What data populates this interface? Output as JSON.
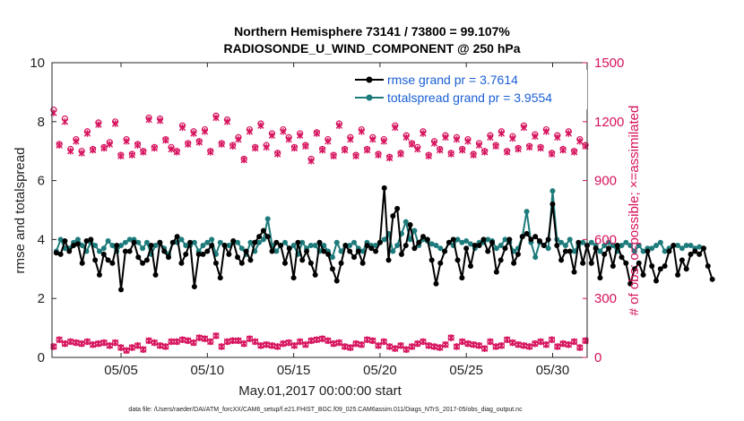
{
  "chart_data": {
    "type": "line",
    "title_line1": "Northern Hemisphere 73141 / 73800 = 99.107%",
    "title_line2": "RADIOSONDE_U_WIND_COMPONENT @ 250 hPa",
    "xlabel": "May.01,2017 00:00:00 start",
    "ylabel_left": "rmse and totalspread",
    "ylabel_right": "# of obs: o=possible; ×=assimilated",
    "footnote": "data file: /Users/raeder/DAI/ATM_forcXX/CAM6_setup/f.e21.FHIST_BGC.f09_025.CAM6assim.011/Diags_NTrS_2017-05/obs_diag_output.nc",
    "x_range": [
      1,
      32
    ],
    "ylim_left": [
      0,
      10
    ],
    "ylim_right": [
      0,
      1500
    ],
    "yticks_left": [
      "0",
      "2",
      "4",
      "6",
      "8",
      "10"
    ],
    "yticks_right": [
      "0",
      "300",
      "600",
      "900",
      "1200",
      "1500"
    ],
    "xticks": [
      {
        "label": "05/05",
        "day": 5
      },
      {
        "label": "05/10",
        "day": 10
      },
      {
        "label": "05/15",
        "day": 15
      },
      {
        "label": "05/20",
        "day": 20
      },
      {
        "label": "05/25",
        "day": 25
      },
      {
        "label": "05/30",
        "day": 30
      }
    ],
    "legend": [
      {
        "label": "rmse grand pr = 3.7614",
        "color": "#000000"
      },
      {
        "label": "totalspread grand pr = 3.9554",
        "color": "#1e7b7b"
      }
    ],
    "colors": {
      "rmse": "#000000",
      "spread": "#1e7b7b",
      "obs": "#d6125d"
    },
    "x_start": 1.25,
    "x_step": 0.25,
    "series": [
      {
        "name": "rmse",
        "values": [
          3.55,
          3.5,
          3.95,
          3.6,
          3.8,
          3.85,
          3.2,
          3.95,
          4.0,
          3.3,
          2.8,
          3.5,
          3.3,
          3.2,
          3.8,
          2.3,
          3.6,
          3.6,
          3.9,
          3.4,
          3.2,
          3.3,
          3.8,
          2.8,
          3.9,
          3.6,
          3.4,
          3.9,
          4.1,
          3.2,
          3.5,
          3.9,
          2.4,
          3.5,
          3.5,
          3.6,
          3.8,
          3.2,
          2.7,
          3.8,
          3.5,
          3.95,
          3.4,
          3.2,
          3.6,
          3.3,
          3.9,
          4.1,
          4.3,
          4.1,
          3.6,
          3.9,
          3.8,
          3.2,
          3.7,
          2.7,
          3.9,
          3.3,
          3.6,
          3.2,
          2.8,
          3.9,
          3.6,
          3.5,
          3.0,
          2.6,
          3.2,
          3.8,
          3.6,
          3.4,
          3.6,
          3.2,
          3.8,
          3.7,
          3.6,
          3.9,
          5.75,
          3.3,
          4.8,
          5.05,
          3.5,
          3.8,
          4.5,
          3.7,
          3.9,
          4.1,
          4.0,
          3.3,
          2.5,
          3.2,
          3.6,
          3.9,
          4.0,
          3.3,
          2.7,
          3.7,
          3.1,
          3.8,
          3.8,
          4.0,
          3.6,
          3.9,
          2.9,
          3.3,
          3.7,
          4.0,
          3.2,
          3.5,
          4.1,
          4.2,
          4.0,
          4.1,
          3.95,
          3.8,
          4.0,
          5.2,
          3.8,
          3.3,
          3.6,
          3.6,
          2.9,
          3.9,
          3.2,
          3.8,
          3.2,
          3.7,
          2.7,
          3.5,
          3.7,
          3.1,
          3.8,
          3.4,
          3.2,
          2.5,
          3.0,
          3.2,
          2.8,
          3.6,
          3.1,
          2.6,
          3.0,
          3.1,
          3.6,
          3.8,
          2.8,
          3.3,
          3.0,
          3.5,
          3.6,
          3.5,
          3.7,
          3.1,
          2.65
        ]
      },
      {
        "name": "totalspread",
        "values": [
          3.6,
          4.0,
          3.7,
          3.7,
          3.9,
          4.0,
          3.8,
          3.6,
          3.9,
          3.8,
          3.6,
          3.7,
          3.95,
          3.8,
          3.6,
          3.8,
          3.9,
          4.0,
          4.0,
          3.9,
          3.7,
          3.9,
          3.5,
          3.8,
          3.9,
          3.7,
          3.5,
          3.9,
          3.9,
          4.0,
          3.8,
          3.8,
          3.9,
          3.6,
          3.8,
          3.9,
          4.0,
          3.5,
          3.9,
          3.8,
          3.8,
          3.9,
          3.9,
          3.7,
          3.5,
          3.9,
          3.6,
          3.9,
          4.0,
          4.7,
          3.8,
          3.6,
          3.8,
          3.9,
          3.7,
          3.8,
          3.5,
          3.9,
          3.7,
          3.8,
          3.8,
          3.6,
          3.8,
          3.6,
          3.4,
          3.9,
          3.6,
          3.8,
          3.8,
          3.9,
          3.7,
          3.6,
          3.9,
          3.8,
          3.8,
          3.9,
          4.0,
          4.2,
          3.6,
          3.8,
          4.2,
          4.6,
          4.0,
          4.3,
          3.8,
          4.0,
          3.95,
          3.85,
          3.8,
          3.7,
          3.6,
          3.9,
          3.8,
          4.0,
          3.9,
          3.95,
          3.85,
          3.7,
          3.9,
          3.9,
          4.0,
          3.95,
          3.7,
          3.8,
          4.0,
          3.9,
          3.6,
          3.7,
          4.1,
          4.95,
          3.9,
          3.4,
          3.9,
          3.8,
          3.7,
          5.65,
          4.0,
          3.9,
          3.8,
          4.0,
          3.6,
          3.8,
          3.9,
          3.8,
          3.9,
          3.8,
          3.6,
          3.8,
          3.9,
          3.8,
          3.6,
          3.8,
          3.9,
          3.8,
          3.6,
          3.8,
          3.6,
          3.7,
          3.7,
          3.8,
          3.9,
          3.6,
          3.7,
          3.8,
          3.8,
          3.7,
          3.8,
          3.8,
          3.7,
          3.75,
          3.7
        ]
      }
    ],
    "obs_possible_top": [
      1260,
      1085,
      1215,
      1060,
      1110,
      1050,
      1150,
      1060,
      1195,
      1070,
      1095,
      1200,
      1030,
      1110,
      1035,
      1085,
      1050,
      1220,
      1070,
      1215,
      1110,
      1070,
      1050,
      1180,
      1090,
      1150,
      1100,
      1160,
      1050,
      1230,
      1090,
      1210,
      1080,
      1120,
      1010,
      1160,
      1070,
      1190,
      1080,
      1140,
      1040,
      1160,
      1120,
      1070,
      1140,
      1080,
      1010,
      1145,
      1060,
      1110,
      1030,
      1190,
      1060,
      1120,
      1030,
      1160,
      1060,
      1120,
      1035,
      1110,
      1020,
      1180,
      1040,
      1130,
      1090,
      1070,
      1150,
      1030,
      1100,
      1060,
      1130,
      1040,
      1120,
      1060,
      1110,
      1035,
      1090,
      1050,
      1130,
      1080,
      1150,
      1050,
      1125,
      1065,
      1180,
      1075,
      1135,
      1070,
      1160,
      1040,
      1130,
      1060,
      1150,
      1050,
      1110,
      1080
    ],
    "obs_assimilated_top": [
      1245,
      1080,
      1200,
      1050,
      1100,
      1040,
      1140,
      1055,
      1185,
      1065,
      1085,
      1190,
      1025,
      1100,
      1030,
      1080,
      1045,
      1210,
      1065,
      1205,
      1105,
      1060,
      1045,
      1170,
      1085,
      1140,
      1095,
      1150,
      1045,
      1220,
      1085,
      1200,
      1075,
      1110,
      1005,
      1150,
      1065,
      1180,
      1070,
      1130,
      1035,
      1150,
      1110,
      1065,
      1130,
      1075,
      1000,
      1140,
      1055,
      1100,
      1025,
      1180,
      1055,
      1110,
      1025,
      1150,
      1055,
      1110,
      1030,
      1100,
      1015,
      1170,
      1035,
      1120,
      1085,
      1060,
      1140,
      1025,
      1090,
      1055,
      1120,
      1035,
      1110,
      1055,
      1100,
      1030,
      1080,
      1045,
      1120,
      1075,
      1140,
      1045,
      1115,
      1060,
      1170,
      1070,
      1125,
      1065,
      1150,
      1035,
      1120,
      1055,
      1140,
      1045,
      1100,
      1075
    ],
    "obs_bottom": [
      55,
      90,
      70,
      80,
      75,
      70,
      80,
      65,
      70,
      75,
      60,
      75,
      50,
      35,
      50,
      60,
      40,
      85,
      75,
      60,
      55,
      80,
      80,
      90,
      85,
      75,
      100,
      95,
      80,
      110,
      55,
      80,
      85,
      85,
      70,
      95,
      80,
      60,
      65,
      60,
      55,
      70,
      75,
      60,
      80,
      65,
      85,
      90,
      95,
      85,
      70,
      75,
      55,
      50,
      70,
      65,
      90,
      85,
      60,
      80,
      55,
      45,
      60,
      40,
      55,
      70,
      80,
      60,
      55,
      50,
      65,
      100,
      55,
      80,
      70,
      65,
      60,
      45,
      80,
      55,
      60,
      90,
      75,
      65,
      60,
      55,
      70,
      80,
      65,
      90,
      55,
      70,
      65,
      80,
      50,
      85
    ]
  }
}
